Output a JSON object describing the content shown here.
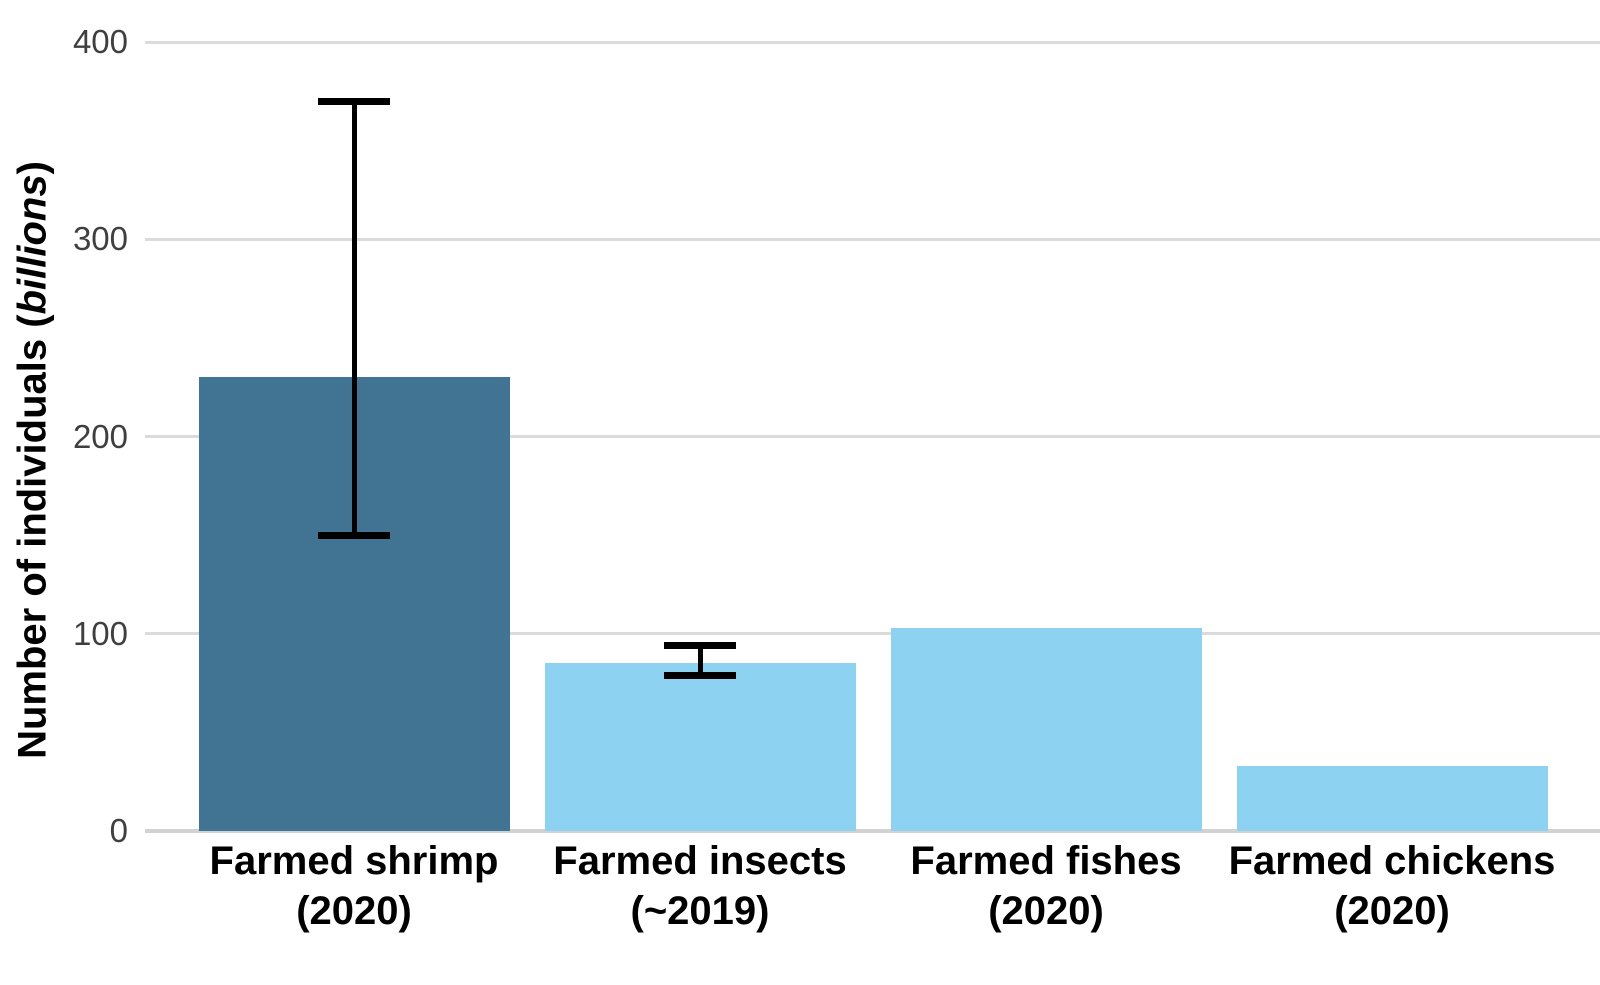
{
  "chart_data": {
    "type": "bar",
    "title": "",
    "xlabel": "",
    "ylabel": "Number of individuals (billions)",
    "ylabel_parts": {
      "prefix": "Number of individuals (",
      "italic": "billions",
      "suffix": ")"
    },
    "categories": [
      {
        "line1": "Farmed shrimp",
        "line2": "(2020)"
      },
      {
        "line1": "Farmed insects",
        "line2": "(~2019)"
      },
      {
        "line1": "Farmed fishes",
        "line2": "(2020)"
      },
      {
        "line1": "Farmed chickens",
        "line2": "(2020)"
      }
    ],
    "values": [
      230,
      85,
      103,
      33
    ],
    "error_bars": [
      {
        "low": 150,
        "high": 370
      },
      {
        "low": 79,
        "high": 94
      },
      null,
      null
    ],
    "bar_colors": [
      "#417392",
      "#8DD3F1",
      "#8DD3F1",
      "#8DD3F1"
    ],
    "yticks": [
      0,
      100,
      200,
      300,
      400
    ],
    "ylim": [
      0,
      400
    ],
    "grid": "horizontal-major-only",
    "legend": "none",
    "colors": {
      "dark_blue": "#417392",
      "light_blue": "#8DD3F1",
      "gridline": "#DBDBDB",
      "tick_label": "#3F3F3F",
      "error_bar": "#000000",
      "background": "#FFFFFF"
    }
  }
}
